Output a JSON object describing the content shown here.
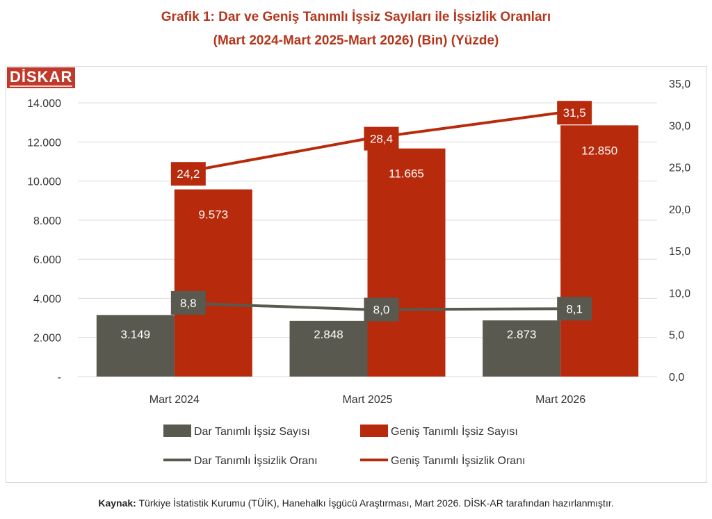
{
  "title_line1": "Grafik 1: Dar ve Geniş Tanımlı İşsiz Sayıları ile İşsizlik Oranları",
  "title_line2": "(Mart 2024-Mart 2025-Mart 2026) (Bin) (Yüzde)",
  "logo_text": "DİSK-AR",
  "source_label": "Kaynak:",
  "source_text": "Türkiye İstatistik Kurumu (TÜİK), Hanehalkı İşgücü Araştırması, Mart 2026. DİSK-AR tarafından hazırlanmıştır.",
  "colors": {
    "dark": "#595950",
    "red": "#b82a0c",
    "grid": "#d9d9d9"
  },
  "chart_data": {
    "type": "bar+line",
    "categories": [
      "Mart 2024",
      "Mart 2025",
      "Mart 2026"
    ],
    "bar_series": [
      {
        "name": "Dar Tanımlı İşsiz Sayısı",
        "values": [
          3149,
          2848,
          2873
        ],
        "labels": [
          "3.149",
          "2.848",
          "2.873"
        ]
      },
      {
        "name": "Geniş Tanımlı İşsiz Sayısı",
        "values": [
          9573,
          11665,
          12850
        ],
        "labels": [
          "9.573",
          "11.665",
          "12.850"
        ]
      }
    ],
    "line_series": [
      {
        "name": "Dar Tanımlı İşsizlik Oranı",
        "values": [
          8.8,
          8.0,
          8.1
        ],
        "labels": [
          "8,8",
          "8,0",
          "8,1"
        ]
      },
      {
        "name": "Geniş Tanımlı İşsizlik Oranı",
        "values": [
          24.2,
          28.4,
          31.5
        ],
        "labels": [
          "24,2",
          "28,4",
          "31,5"
        ]
      }
    ],
    "y_left": {
      "range": [
        0,
        14000
      ],
      "ticks": [
        "-",
        "2.000",
        "4.000",
        "6.000",
        "8.000",
        "10.000",
        "12.000",
        "14.000"
      ]
    },
    "y_right": {
      "range": [
        0,
        35
      ],
      "ticks": [
        "0,0",
        "5,0",
        "10,0",
        "15,0",
        "20,0",
        "25,0",
        "30,0",
        "35,0"
      ]
    },
    "grid": true,
    "legend_position": "bottom"
  }
}
